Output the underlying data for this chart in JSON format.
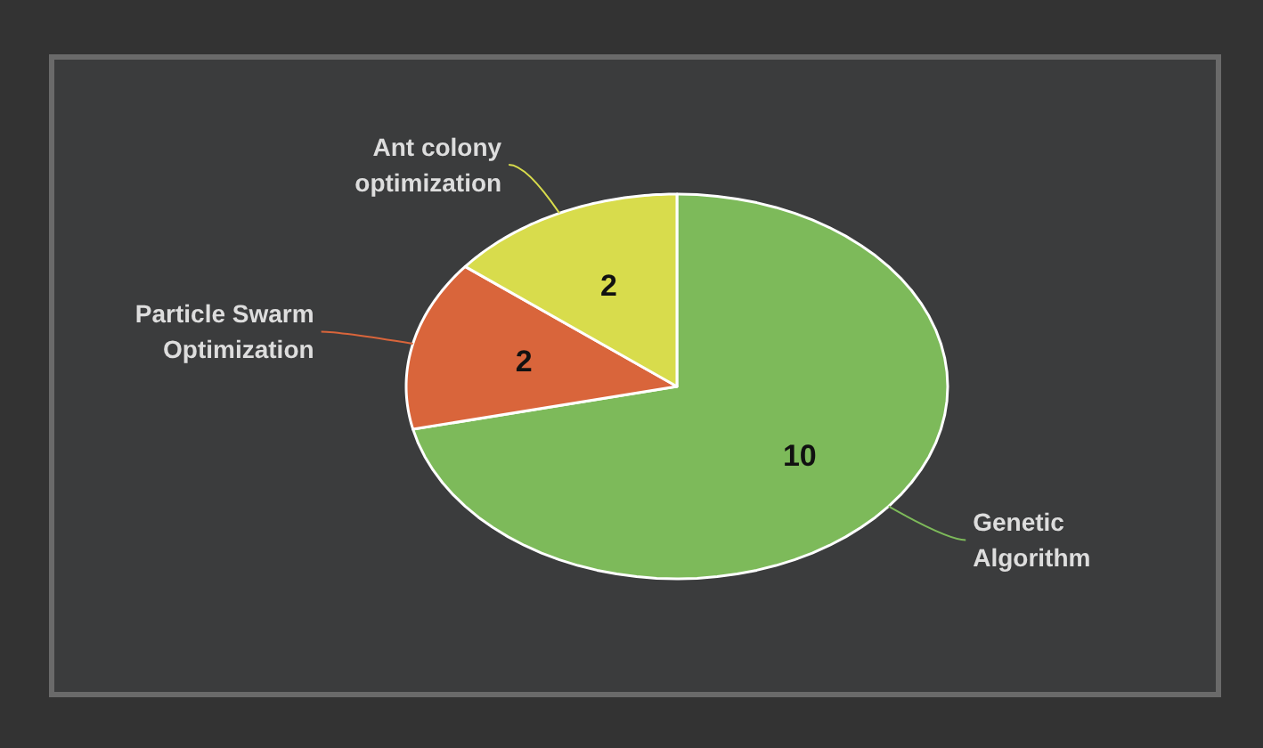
{
  "chart_data": {
    "type": "pie",
    "categories": [
      "Genetic Algorithm",
      "Particle Swarm Optimization",
      "Ant colony optimization"
    ],
    "values": [
      10,
      2,
      2
    ],
    "colors": [
      "#7dba5a",
      "#d9653b",
      "#d8dc4c"
    ],
    "data_labels": true
  }
}
